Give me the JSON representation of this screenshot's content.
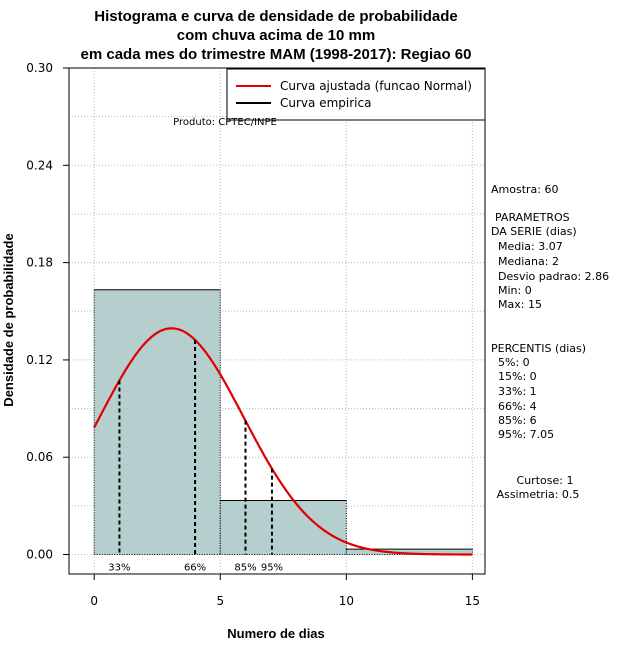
{
  "chart_data": {
    "type": "bar",
    "title_lines": [
      "Histograma e curva de densidade de probabilidade",
      "com chuva acima de 10 mm",
      "em cada mes do trimestre MAM (1998-2017): Regiao 60"
    ],
    "xlabel": "Numero de dias",
    "ylabel": "Densidade de probabilidade",
    "xlim": [
      -1,
      15.5
    ],
    "ylim": [
      -0.012,
      0.3
    ],
    "x_ticks": [
      "0",
      "5",
      "10",
      "15"
    ],
    "y_ticks": [
      "0.00",
      "0.06",
      "0.12",
      "0.18",
      "0.24",
      "0.30"
    ],
    "bins": [
      {
        "start": 0,
        "end": 5,
        "density": 0.1633
      },
      {
        "start": 5,
        "end": 10,
        "density": 0.0333
      },
      {
        "start": 10,
        "end": 15,
        "density": 0.0033
      }
    ],
    "normal_fit": {
      "mean": 3.07,
      "sd": 2.86,
      "x_from": 0,
      "x_to": 15
    },
    "percentile_lines": [
      {
        "label": "33%",
        "x": 1
      },
      {
        "label": "66%",
        "x": 4
      },
      {
        "label": "85%",
        "x": 6
      },
      {
        "label": "95%",
        "x": 7.05
      }
    ],
    "legend": [
      {
        "label": "Curva ajustada (funcao Normal)",
        "color": "#e00000"
      },
      {
        "label": "Curva empirica",
        "color": "#000000"
      }
    ],
    "product_label": "Produto: CPTEC/INPE",
    "colors": {
      "bar_fill": "#b5cece",
      "curve": "#e00000",
      "grid": "#bbbbbb"
    }
  },
  "side_panel": {
    "sample": "Amostra: 60",
    "params_title_1": "PARAMETROS",
    "params_title_2": "DA SERIE (dias)",
    "params": [
      "Media: 3.07",
      "Mediana: 2",
      "Desvio padrao: 2.86",
      "Min: 0",
      "Max: 15"
    ],
    "percentis_title": "PERCENTIS (dias)",
    "percentis": [
      "5%: 0",
      "15%: 0",
      "33%: 1",
      "66%: 4",
      "85%: 6",
      "95%: 7.05"
    ],
    "curtose": "Curtose: 1",
    "assimetria": "Assimetria: 0.5"
  }
}
